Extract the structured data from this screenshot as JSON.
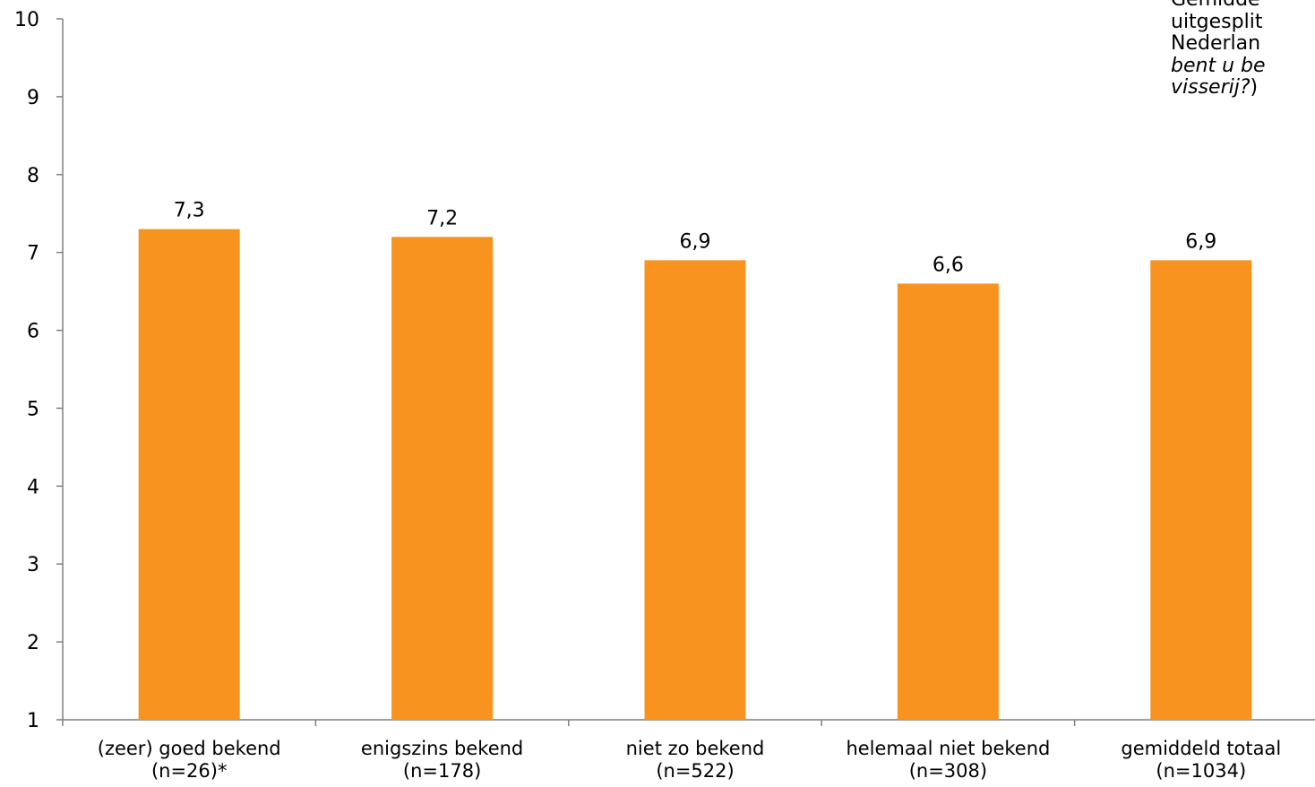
{
  "chart_data": {
    "type": "bar",
    "categories": [
      [
        "(zeer) goed bekend",
        "(n=26)*"
      ],
      [
        "enigszins bekend",
        "(n=178)"
      ],
      [
        "niet zo bekend",
        "(n=522)"
      ],
      [
        "helemaal niet bekend",
        "(n=308)"
      ],
      [
        "gemiddeld totaal",
        "(n=1034)"
      ]
    ],
    "values": [
      7.3,
      7.2,
      6.9,
      6.6,
      6.9
    ],
    "value_labels": [
      "7,3",
      "7,2",
      "6,9",
      "6,6",
      "6,9"
    ],
    "ylim": [
      1,
      10
    ],
    "yticks": [
      1,
      2,
      3,
      4,
      5,
      6,
      7,
      8,
      9,
      10
    ],
    "grid": false,
    "legend": "none",
    "bar_color": "#F7931E",
    "annotation": {
      "line1": "Gemidde",
      "line2": "uitgesplit",
      "line3": "Nederlan",
      "line4_italic": "bent u be",
      "line5_italic": "visserij?",
      "line5_tail": ")"
    }
  }
}
